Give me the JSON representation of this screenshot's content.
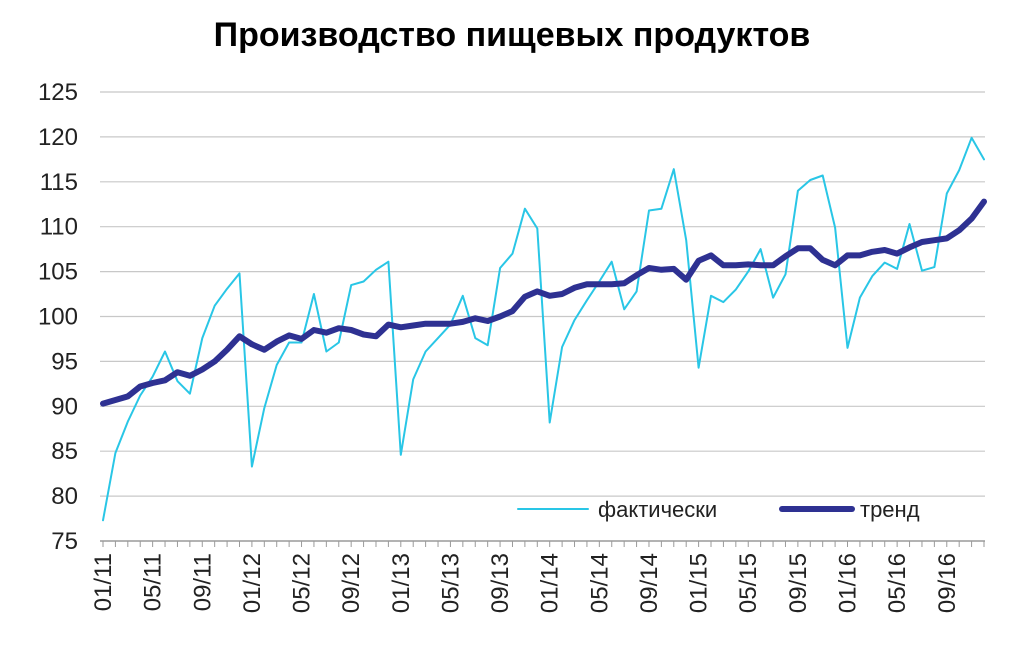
{
  "chart_data": {
    "type": "line",
    "title": "Производство пищевых продуктов",
    "xlabel": "",
    "ylabel": "",
    "ylim": [
      75,
      125
    ],
    "yticks": [
      75,
      80,
      85,
      90,
      95,
      100,
      105,
      110,
      115,
      120,
      125
    ],
    "grid": true,
    "legend_position": "bottom-right",
    "x_start": "01/11",
    "x_tick_labels": [
      "01/11",
      "05/11",
      "09/11",
      "01/12",
      "05/12",
      "09/12",
      "01/13",
      "05/13",
      "09/13",
      "01/14",
      "05/14",
      "09/14",
      "01/15",
      "05/15",
      "09/15",
      "01/16",
      "05/16",
      "09/16"
    ],
    "x_tick_every_months": 4,
    "series": [
      {
        "name": "фактически",
        "color": "#29C6E6",
        "values": [
          77.3,
          84.8,
          88.3,
          91.2,
          93.3,
          96.1,
          92.8,
          91.4,
          97.6,
          101.2,
          103.1,
          104.8,
          83.3,
          89.8,
          94.6,
          97.1,
          97.1,
          102.5,
          96.1,
          97.1,
          103.5,
          103.9,
          105.2,
          106.1,
          84.6,
          93.0,
          96.1,
          97.6,
          99.1,
          102.3,
          97.6,
          96.8,
          105.4,
          107.0,
          112.0,
          109.8,
          88.2,
          96.6,
          99.6,
          101.8,
          103.9,
          106.1,
          100.8,
          102.8,
          111.8,
          112.0,
          116.4,
          108.5,
          94.3,
          102.3,
          101.6,
          103.0,
          105.0,
          107.5,
          102.1,
          104.7,
          114.0,
          115.2,
          115.7,
          109.9,
          96.5,
          102.1,
          104.5,
          106.0,
          105.3,
          110.3,
          105.1,
          105.5,
          113.7,
          116.3,
          119.9,
          117.5
        ]
      },
      {
        "name": "тренд",
        "color": "#2E3192",
        "values": [
          90.3,
          90.7,
          91.1,
          92.2,
          92.6,
          92.9,
          93.8,
          93.4,
          94.1,
          95.0,
          96.3,
          97.8,
          96.9,
          96.3,
          97.2,
          97.9,
          97.5,
          98.5,
          98.2,
          98.7,
          98.5,
          98.0,
          97.8,
          99.1,
          98.8,
          99.0,
          99.2,
          99.2,
          99.2,
          99.4,
          99.8,
          99.5,
          100.0,
          100.6,
          102.2,
          102.8,
          102.3,
          102.5,
          103.2,
          103.6,
          103.6,
          103.6,
          103.7,
          104.6,
          105.4,
          105.2,
          105.3,
          104.1,
          106.2,
          106.8,
          105.7,
          105.7,
          105.8,
          105.7,
          105.7,
          106.7,
          107.6,
          107.6,
          106.3,
          105.7,
          106.8,
          106.8,
          107.2,
          107.4,
          107.0,
          107.7,
          108.3,
          108.5,
          108.7,
          109.6,
          110.9,
          112.8
        ]
      }
    ]
  }
}
